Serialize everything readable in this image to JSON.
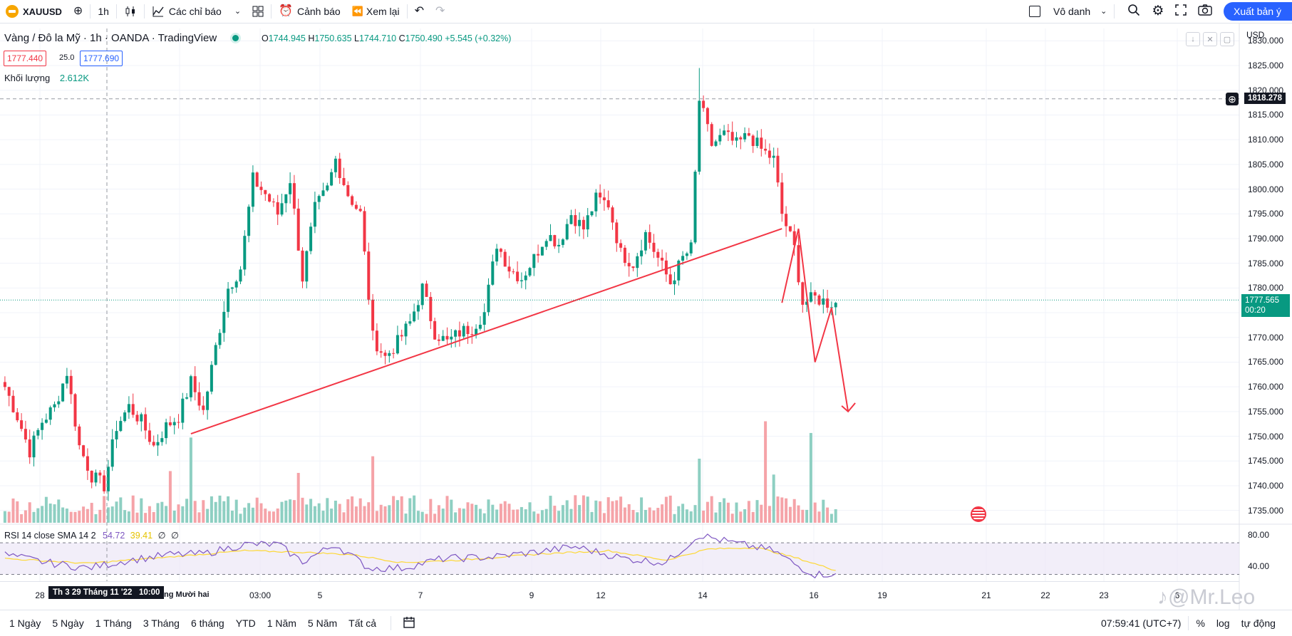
{
  "toolbar": {
    "symbol": "XAUUSD",
    "interval": "1h",
    "indicators_label": "Các chỉ báo",
    "alert_label": "Cảnh báo",
    "replay_label": "Xem lại",
    "layout_name": "Vô danh",
    "publish_label": "Xuất bản ý tưởng"
  },
  "legend": {
    "title": "Vàng / Đô la Mỹ · 1h · OANDA · TradingView",
    "open_label": "O",
    "open": "1744.945",
    "high_label": "H",
    "high": "1750.635",
    "low_label": "L",
    "low": "1744.710",
    "close_label": "C",
    "close": "1750.490",
    "change": "+5.545 (+0.32%)",
    "bid": "1777.440",
    "spread": "25.0",
    "ask": "1777.690",
    "volume_label": "Khối lượng",
    "volume_value": "2.612K"
  },
  "rsi_legend": {
    "label": "RSI 14 close SMA 14 2",
    "rsi": "54.72",
    "sma": "39.41",
    "v1": "∅",
    "v2": "∅"
  },
  "price_axis": {
    "currency": "USD",
    "labels": [
      "1830.000",
      "1825.000",
      "1820.000",
      "1815.000",
      "1810.000",
      "1805.000",
      "1800.000",
      "1795.000",
      "1790.000",
      "1785.000",
      "1780.000",
      "1775.000",
      "1770.000",
      "1765.000",
      "1760.000",
      "1755.000",
      "1750.000",
      "1745.000",
      "1740.000",
      "1735.000"
    ],
    "crosshair_price": "1818.278",
    "last_price": "1777.565",
    "countdown": "00:20"
  },
  "rsi_axis": {
    "labels": [
      "80.00",
      "40.00"
    ]
  },
  "time_axis": {
    "labels": [
      "28",
      "Tháng Mười hai",
      "03:00",
      "5",
      "7",
      "9",
      "12",
      "14",
      "16",
      "19",
      "21",
      "22",
      "23",
      "6"
    ],
    "crosshair_time": "Th 3 29 Tháng 11 '22   10:00"
  },
  "bottom": {
    "ranges": [
      "1 Ngày",
      "5 Ngày",
      "1 Tháng",
      "3 Tháng",
      "6 tháng",
      "YTD",
      "1 Năm",
      "5 Năm",
      "Tất cả"
    ],
    "clock": "07:59:41 (UTC+7)",
    "percent": "%",
    "log": "log",
    "auto": "tự động"
  },
  "watermark": "@Mr.Leo",
  "colors": {
    "up": "#089981",
    "down": "#f23645",
    "accent": "#2962ff",
    "rsi": "#7e57c2",
    "rsi_sma": "#fdd835"
  },
  "chart_data": {
    "type": "candlestick",
    "symbol": "XAUUSD",
    "interval": "1h",
    "ylim": [
      1732.5,
      1832.5
    ],
    "anchors": [
      [
        0,
        1760
      ],
      [
        3,
        1754
      ],
      [
        6,
        1747
      ],
      [
        9,
        1753
      ],
      [
        12,
        1756
      ],
      [
        15,
        1763
      ],
      [
        18,
        1748
      ],
      [
        21,
        1742
      ],
      [
        24,
        1740
      ],
      [
        27,
        1752
      ],
      [
        30,
        1756
      ],
      [
        33,
        1753
      ],
      [
        36,
        1748
      ],
      [
        39,
        1752
      ],
      [
        42,
        1754
      ],
      [
        45,
        1761
      ],
      [
        48,
        1755
      ],
      [
        51,
        1768
      ],
      [
        54,
        1780
      ],
      [
        57,
        1784
      ],
      [
        60,
        1802
      ],
      [
        63,
        1799
      ],
      [
        66,
        1795
      ],
      [
        69,
        1802
      ],
      [
        72,
        1782
      ],
      [
        75,
        1796
      ],
      [
        78,
        1800
      ],
      [
        80,
        1806
      ],
      [
        83,
        1799
      ],
      [
        86,
        1795
      ],
      [
        89,
        1770
      ],
      [
        92,
        1766
      ],
      [
        95,
        1769
      ],
      [
        98,
        1773
      ],
      [
        101,
        1780
      ],
      [
        104,
        1771
      ],
      [
        107,
        1769
      ],
      [
        110,
        1771
      ],
      [
        113,
        1772
      ],
      [
        116,
        1775
      ],
      [
        119,
        1789
      ],
      [
        122,
        1784
      ],
      [
        125,
        1782
      ],
      [
        128,
        1786
      ],
      [
        131,
        1791
      ],
      [
        134,
        1789
      ],
      [
        137,
        1795
      ],
      [
        140,
        1792
      ],
      [
        143,
        1798
      ],
      [
        146,
        1797
      ],
      [
        149,
        1787
      ],
      [
        152,
        1785
      ],
      [
        155,
        1791
      ],
      [
        158,
        1786
      ],
      [
        161,
        1781
      ],
      [
        164,
        1786
      ],
      [
        166,
        1788
      ],
      [
        168,
        1818
      ],
      [
        171,
        1809
      ],
      [
        174,
        1811
      ],
      [
        177,
        1809
      ],
      [
        180,
        1811
      ],
      [
        183,
        1808
      ],
      [
        186,
        1806
      ],
      [
        188,
        1795
      ],
      [
        191,
        1788
      ],
      [
        193,
        1777
      ],
      [
        196,
        1778
      ],
      [
        199,
        1777
      ],
      [
        201,
        1777
      ]
    ],
    "volume_ylim": [
      0,
      1000
    ],
    "rsi": {
      "ylim": [
        25,
        90
      ],
      "bands": [
        70,
        30
      ],
      "anchors": [
        [
          0,
          55
        ],
        [
          10,
          45
        ],
        [
          20,
          38
        ],
        [
          30,
          48
        ],
        [
          40,
          55
        ],
        [
          48,
          56
        ],
        [
          58,
          68
        ],
        [
          66,
          68
        ],
        [
          72,
          46
        ],
        [
          80,
          68
        ],
        [
          88,
          38
        ],
        [
          96,
          38
        ],
        [
          106,
          50
        ],
        [
          118,
          52
        ],
        [
          128,
          58
        ],
        [
          138,
          65
        ],
        [
          150,
          50
        ],
        [
          160,
          45
        ],
        [
          168,
          80
        ],
        [
          176,
          70
        ],
        [
          186,
          60
        ],
        [
          192,
          40
        ],
        [
          196,
          30
        ],
        [
          201,
          31
        ]
      ],
      "sma_anchors": [
        [
          0,
          50
        ],
        [
          20,
          44
        ],
        [
          40,
          52
        ],
        [
          58,
          60
        ],
        [
          72,
          58
        ],
        [
          84,
          55
        ],
        [
          96,
          45
        ],
        [
          110,
          48
        ],
        [
          130,
          56
        ],
        [
          146,
          60
        ],
        [
          160,
          48
        ],
        [
          170,
          62
        ],
        [
          182,
          64
        ],
        [
          192,
          50
        ],
        [
          201,
          35
        ]
      ]
    },
    "drawings": [
      {
        "type": "trendline",
        "from": [
          45,
          1750.5
        ],
        "to": [
          188,
          1792
        ]
      },
      {
        "type": "path",
        "points": [
          [
            188,
            1777
          ],
          [
            192,
            1792
          ],
          [
            196,
            1765
          ],
          [
            200,
            1776
          ],
          [
            204,
            1755
          ]
        ]
      }
    ]
  }
}
